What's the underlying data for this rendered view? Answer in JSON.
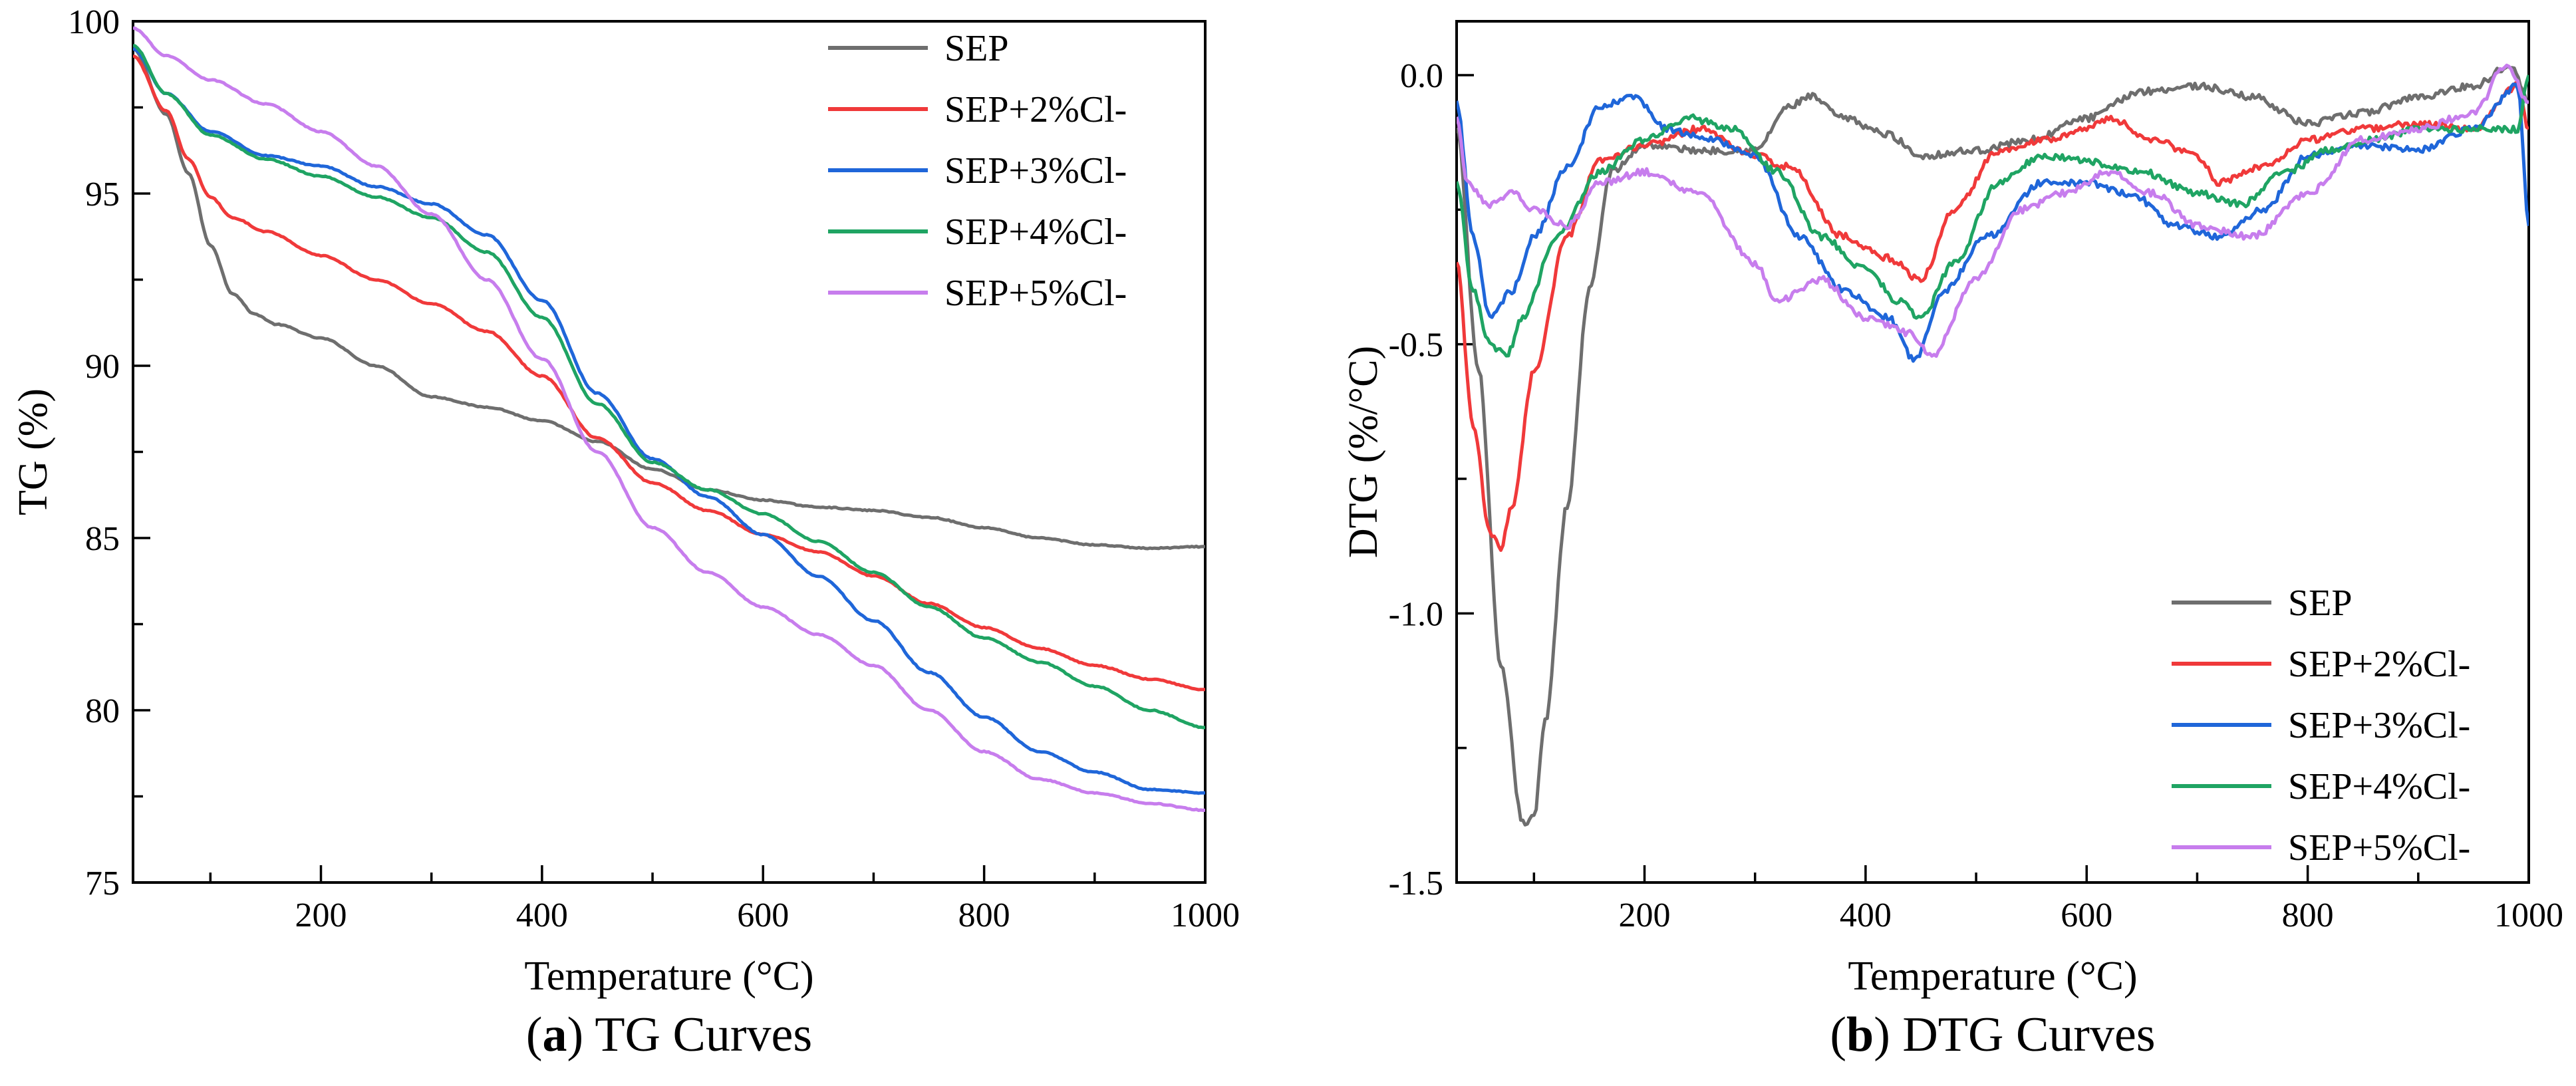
{
  "chart_data": [
    {
      "type": "line",
      "panel_letter": "a",
      "caption": "TG Curves",
      "xlabel": "Temperature (°C)",
      "ylabel": "TG (%)",
      "xlim": [
        30,
        1000
      ],
      "ylim": [
        75,
        100
      ],
      "xticks": [
        200,
        400,
        600,
        800,
        1000
      ],
      "yticks": [
        75,
        80,
        85,
        90,
        95,
        100
      ],
      "legend_position": "top-right",
      "series": [
        {
          "name": "SEP",
          "color": "#6e6e6e",
          "x": [
            30,
            60,
            80,
            100,
            120,
            140,
            160,
            200,
            250,
            300,
            350,
            400,
            450,
            500,
            550,
            600,
            650,
            700,
            750,
            800,
            850,
            900,
            950,
            1000
          ],
          "y": [
            99.2,
            97.3,
            95.6,
            93.5,
            92.1,
            91.5,
            91.2,
            90.8,
            90.0,
            89.1,
            88.8,
            88.4,
            87.8,
            87.0,
            86.4,
            86.1,
            85.9,
            85.8,
            85.6,
            85.3,
            85.0,
            84.8,
            84.7,
            84.75
          ]
        },
        {
          "name": "SEP+2%Cl-",
          "color": "#f0393a",
          "x": [
            30,
            60,
            80,
            100,
            120,
            150,
            200,
            250,
            300,
            350,
            400,
            450,
            500,
            550,
            600,
            650,
            700,
            750,
            800,
            850,
            900,
            950,
            1000
          ],
          "y": [
            99.0,
            97.4,
            96.0,
            94.9,
            94.3,
            93.9,
            93.2,
            92.5,
            91.8,
            91.0,
            89.7,
            87.9,
            86.6,
            85.8,
            85.1,
            84.6,
            83.9,
            83.1,
            82.4,
            81.8,
            81.3,
            80.9,
            80.6
          ]
        },
        {
          "name": "SEP+3%Cl-",
          "color": "#1f66d9",
          "x": [
            30,
            60,
            100,
            150,
            200,
            250,
            300,
            350,
            400,
            450,
            500,
            550,
            600,
            650,
            700,
            750,
            800,
            850,
            900,
            950,
            1000
          ],
          "y": [
            99.2,
            97.9,
            96.8,
            96.1,
            95.8,
            95.2,
            94.7,
            93.8,
            91.9,
            89.2,
            87.3,
            86.2,
            85.1,
            83.9,
            82.6,
            81.1,
            79.8,
            78.8,
            78.2,
            77.7,
            77.6
          ]
        },
        {
          "name": "SEP+4%Cl-",
          "color": "#1fa463",
          "x": [
            30,
            60,
            100,
            150,
            200,
            250,
            300,
            350,
            400,
            450,
            500,
            550,
            600,
            650,
            700,
            750,
            800,
            850,
            900,
            950,
            1000
          ],
          "y": [
            99.3,
            97.9,
            96.7,
            96.0,
            95.5,
            94.9,
            94.3,
            93.3,
            91.4,
            88.9,
            87.2,
            86.4,
            85.7,
            84.9,
            84.0,
            83.0,
            82.1,
            81.4,
            80.7,
            80.0,
            79.5
          ]
        },
        {
          "name": "SEP+5%Cl-",
          "color": "#c77ded",
          "x": [
            30,
            60,
            100,
            150,
            200,
            250,
            300,
            350,
            400,
            450,
            500,
            550,
            600,
            650,
            700,
            750,
            800,
            850,
            900,
            950,
            1000
          ],
          "y": [
            99.8,
            99.0,
            98.3,
            97.6,
            96.8,
            95.8,
            94.4,
            92.5,
            90.2,
            87.5,
            85.3,
            84.0,
            83.0,
            82.2,
            81.3,
            80.0,
            78.8,
            78.0,
            77.6,
            77.3,
            77.1
          ]
        }
      ]
    },
    {
      "type": "line",
      "panel_letter": "b",
      "caption": "DTG Curves",
      "xlabel": "Temperature (°C)",
      "ylabel": "DTG (%/°C)",
      "xlim": [
        30,
        1000
      ],
      "ylim": [
        -1.5,
        0.1
      ],
      "xticks": [
        200,
        400,
        600,
        800,
        1000
      ],
      "yticks": [
        -1.5,
        -1.0,
        -0.5,
        0.0
      ],
      "ytick_labels": [
        "-1.5",
        "-1.0",
        "-0.5",
        "0.0"
      ],
      "legend_position": "bottom-right",
      "series": [
        {
          "name": "SEP",
          "color": "#6e6e6e",
          "x": [
            30,
            50,
            70,
            90,
            100,
            110,
            130,
            150,
            170,
            200,
            250,
            300,
            330,
            350,
            380,
            420,
            450,
            500,
            550,
            600,
            650,
            700,
            750,
            800,
            850,
            900,
            950,
            985,
            1000
          ],
          "y": [
            -0.1,
            -0.55,
            -1.1,
            -1.39,
            -1.38,
            -1.2,
            -0.8,
            -0.4,
            -0.18,
            -0.13,
            -0.14,
            -0.14,
            -0.06,
            -0.04,
            -0.08,
            -0.11,
            -0.15,
            -0.14,
            -0.12,
            -0.08,
            -0.03,
            -0.02,
            -0.04,
            -0.09,
            -0.07,
            -0.04,
            -0.02,
            0.02,
            -0.05
          ]
        },
        {
          "name": "SEP+2%Cl-",
          "color": "#f0393a",
          "x": [
            30,
            45,
            60,
            70,
            80,
            100,
            130,
            160,
            200,
            250,
            300,
            330,
            380,
            420,
            450,
            480,
            520,
            560,
            600,
            620,
            660,
            700,
            720,
            760,
            800,
            850,
            900,
            950,
            990,
            1000
          ],
          "y": [
            -0.35,
            -0.65,
            -0.85,
            -0.88,
            -0.8,
            -0.55,
            -0.3,
            -0.16,
            -0.13,
            -0.1,
            -0.15,
            -0.17,
            -0.3,
            -0.34,
            -0.38,
            -0.25,
            -0.14,
            -0.12,
            -0.1,
            -0.08,
            -0.12,
            -0.15,
            -0.2,
            -0.17,
            -0.12,
            -0.1,
            -0.09,
            -0.1,
            -0.02,
            -0.1
          ]
        },
        {
          "name": "SEP+3%Cl-",
          "color": "#1f66d9",
          "x": [
            30,
            45,
            60,
            80,
            100,
            130,
            160,
            190,
            220,
            260,
            300,
            340,
            380,
            420,
            445,
            470,
            510,
            560,
            600,
            640,
            680,
            720,
            760,
            800,
            850,
            900,
            950,
            990,
            1000
          ],
          "y": [
            -0.05,
            -0.3,
            -0.45,
            -0.4,
            -0.3,
            -0.17,
            -0.06,
            -0.04,
            -0.1,
            -0.12,
            -0.15,
            -0.3,
            -0.4,
            -0.45,
            -0.53,
            -0.4,
            -0.3,
            -0.2,
            -0.2,
            -0.22,
            -0.28,
            -0.3,
            -0.25,
            -0.15,
            -0.13,
            -0.14,
            -0.1,
            -0.02,
            -0.28
          ]
        },
        {
          "name": "SEP+4%Cl-",
          "color": "#1fa463",
          "x": [
            30,
            45,
            60,
            75,
            90,
            120,
            160,
            200,
            240,
            280,
            320,
            360,
            400,
            430,
            450,
            480,
            520,
            560,
            600,
            650,
            700,
            740,
            780,
            820,
            860,
            900,
            950,
            990,
            1000
          ],
          "y": [
            -0.2,
            -0.4,
            -0.5,
            -0.52,
            -0.45,
            -0.3,
            -0.18,
            -0.12,
            -0.08,
            -0.1,
            -0.18,
            -0.3,
            -0.36,
            -0.42,
            -0.45,
            -0.35,
            -0.2,
            -0.15,
            -0.16,
            -0.18,
            -0.22,
            -0.24,
            -0.18,
            -0.14,
            -0.12,
            -0.1,
            -0.1,
            -0.1,
            0.0
          ]
        },
        {
          "name": "SEP+5%Cl-",
          "color": "#c77ded",
          "x": [
            30,
            40,
            60,
            80,
            100,
            130,
            160,
            200,
            250,
            300,
            320,
            360,
            400,
            440,
            460,
            500,
            540,
            580,
            620,
            660,
            700,
            750,
            800,
            850,
            900,
            950,
            980,
            1000
          ],
          "y": [
            -0.08,
            -0.2,
            -0.24,
            -0.22,
            -0.25,
            -0.28,
            -0.2,
            -0.18,
            -0.22,
            -0.35,
            -0.42,
            -0.38,
            -0.45,
            -0.48,
            -0.52,
            -0.38,
            -0.25,
            -0.22,
            -0.18,
            -0.22,
            -0.28,
            -0.3,
            -0.22,
            -0.12,
            -0.1,
            -0.07,
            0.02,
            -0.05
          ]
        }
      ]
    }
  ]
}
